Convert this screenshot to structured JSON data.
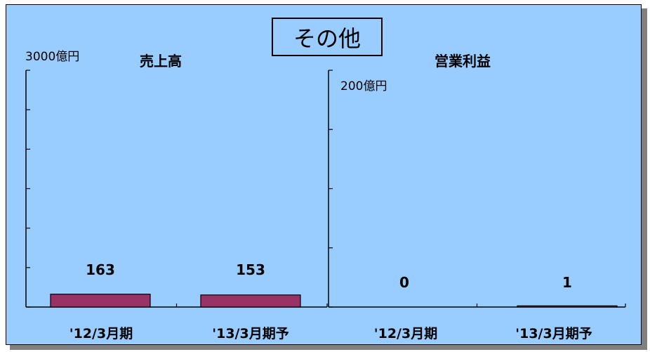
{
  "title": "その他",
  "colors": {
    "background": "#99ccff",
    "bar": "#993366",
    "axis": "#000000",
    "shadow": "#808080"
  },
  "chart_data": [
    {
      "type": "bar",
      "title": "売上高",
      "unit_label": "3000億円",
      "categories": [
        "'12/3月期",
        "'13/3月期予"
      ],
      "values": [
        163,
        153
      ],
      "data_labels": [
        "163",
        "153"
      ],
      "ylim": [
        0,
        3000
      ],
      "ytick_step": 500,
      "grid": false
    },
    {
      "type": "bar",
      "title": "営業利益",
      "unit_label": "200億円",
      "categories": [
        "'12/3月期",
        "'13/3月期予"
      ],
      "values": [
        0,
        1
      ],
      "data_labels": [
        "0",
        "1"
      ],
      "ylim": [
        0,
        200
      ],
      "ytick_step": 50,
      "grid": false
    }
  ]
}
